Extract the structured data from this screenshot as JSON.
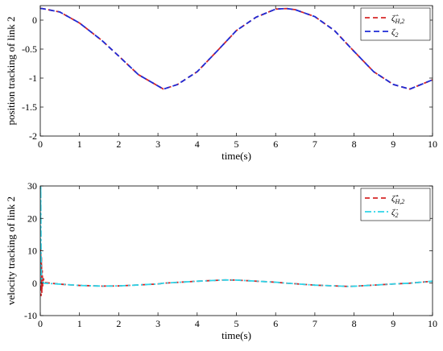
{
  "chart_data": [
    {
      "type": "line",
      "xlabel": "time(s)",
      "ylabel": "position tracking of link 2",
      "xlim": [
        0,
        10
      ],
      "ylim": [
        -2,
        0.25
      ],
      "xticks": [
        "0",
        "1",
        "2",
        "3",
        "4",
        "5",
        "6",
        "7",
        "8",
        "9",
        "10"
      ],
      "yticks": [
        "0",
        "-0.5",
        "-1",
        "-1.5",
        "-2"
      ],
      "grid": false,
      "legend_position": "top-right",
      "series": [
        {
          "name": "ζ̂H,2",
          "legend_main": "ζ̂",
          "legend_sub": "H,2",
          "color": "#d62728",
          "dash": "6,4",
          "x": [
            0,
            0.02,
            0.05,
            0.5,
            1,
            1.57,
            2,
            2.5,
            3.14,
            3.5,
            4,
            4.5,
            5,
            5.5,
            6,
            6.28,
            6.5,
            7,
            7.5,
            8,
            8.5,
            9,
            9.42,
            10
          ],
          "y": [
            0.2,
            0.2,
            0.2,
            0.14,
            -0.05,
            -0.35,
            -0.62,
            -0.94,
            -1.19,
            -1.11,
            -0.89,
            -0.54,
            -0.18,
            0.05,
            0.19,
            0.2,
            0.18,
            0.06,
            -0.18,
            -0.54,
            -0.89,
            -1.11,
            -1.19,
            -1.03
          ]
        },
        {
          "name": "ζ2",
          "legend_main": "ζ",
          "legend_sub": "2",
          "color": "#1f2bd6",
          "dash": "7,4",
          "x": [
            0,
            0.02,
            0.05,
            0.5,
            1,
            1.57,
            2,
            2.5,
            3.14,
            3.5,
            4,
            4.5,
            5,
            5.5,
            6,
            6.28,
            6.5,
            7,
            7.5,
            8,
            8.5,
            9,
            9.42,
            10
          ],
          "y": [
            0.2,
            0.2,
            0.2,
            0.14,
            -0.05,
            -0.35,
            -0.62,
            -0.94,
            -1.19,
            -1.11,
            -0.89,
            -0.54,
            -0.18,
            0.05,
            0.19,
            0.2,
            0.18,
            0.06,
            -0.18,
            -0.54,
            -0.89,
            -1.11,
            -1.19,
            -1.03
          ]
        }
      ]
    },
    {
      "type": "line",
      "xlabel": "time(s)",
      "ylabel": "velocity tracking of link 2",
      "xlim": [
        0,
        10
      ],
      "ylim": [
        -10,
        30
      ],
      "xticks": [
        "0",
        "1",
        "2",
        "3",
        "4",
        "5",
        "6",
        "7",
        "8",
        "9",
        "10"
      ],
      "yticks": [
        "30",
        "20",
        "10",
        "0",
        "-10"
      ],
      "grid": false,
      "legend_position": "top-right",
      "series": [
        {
          "name": "ζ̇̂H,2",
          "legend_main": "ζ̇̂",
          "legend_sub": "H,2",
          "color": "#d62728",
          "dash": "6,4",
          "x": [
            0,
            0.01,
            0.02,
            0.03,
            0.04,
            0.05,
            0.06,
            0.08,
            0.1,
            0.5,
            1,
            1.57,
            2,
            3,
            3.14,
            4,
            4.71,
            5,
            6,
            6.28,
            7,
            7.85,
            8,
            9,
            9.42,
            10
          ],
          "y": [
            0,
            12,
            -4,
            8,
            -3,
            4,
            -1,
            1.5,
            0.2,
            -0.3,
            -0.7,
            -0.9,
            -0.85,
            -0.25,
            0,
            0.6,
            1,
            0.95,
            0.3,
            0,
            -0.6,
            -1,
            -0.95,
            -0.25,
            0,
            0.6
          ]
        },
        {
          "name": "ζ̇2",
          "legend_main": "ζ̇",
          "legend_sub": "2",
          "color": "#2fd4e8",
          "dash": "8,3,2,3",
          "x": [
            0,
            0.01,
            0.02,
            0.03,
            0.05,
            0.08,
            0.1,
            0.5,
            1,
            1.57,
            2,
            3,
            3.14,
            4,
            4.71,
            5,
            6,
            6.28,
            7,
            7.85,
            8,
            9,
            9.42,
            10
          ],
          "y": [
            0,
            30,
            10,
            2,
            0.5,
            0.2,
            0,
            -0.3,
            -0.7,
            -0.9,
            -0.85,
            -0.25,
            0,
            0.6,
            1,
            0.95,
            0.3,
            0,
            -0.6,
            -1,
            -0.95,
            -0.25,
            0,
            0.6
          ]
        }
      ]
    }
  ]
}
